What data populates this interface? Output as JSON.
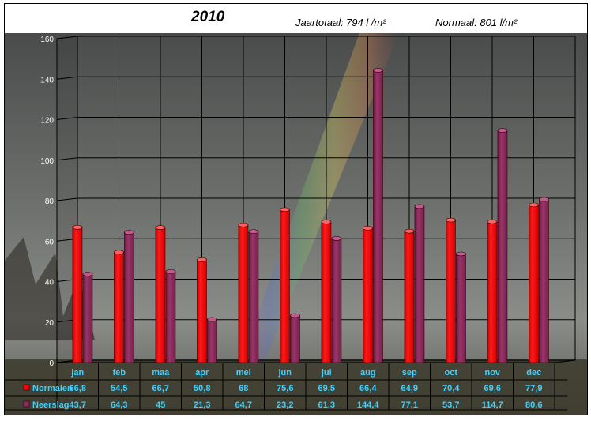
{
  "header": {
    "title": "2010",
    "year_total_label": "Jaartotaal:",
    "year_total_value": "794   l /m²",
    "normal_label": "Normaal: 801 l/m²"
  },
  "colors": {
    "normalen": "#ff0000",
    "neerslag": "#8c2a5a",
    "table_text": "#3fd1ff",
    "axis_text": "#ffffff"
  },
  "chart_data": {
    "type": "bar",
    "categories": [
      "jan",
      "feb",
      "maa",
      "apr",
      "mei",
      "jun",
      "jul",
      "aug",
      "sep",
      "oct",
      "nov",
      "dec"
    ],
    "series": [
      {
        "name": "Normalen",
        "values": [
          66.8,
          54.5,
          66.7,
          50.8,
          68,
          75.6,
          69.5,
          66.4,
          64.9,
          70.4,
          69.6,
          77.9
        ]
      },
      {
        "name": "Neerslag",
        "values": [
          43.7,
          64.3,
          45,
          21.3,
          64.7,
          23.2,
          61.3,
          144.4,
          77.1,
          53.7,
          114.7,
          80.6
        ]
      }
    ],
    "series_labels": [
      [
        "66,8",
        "54,5",
        "66,7",
        "50,8",
        "68",
        "75,6",
        "69,5",
        "66,4",
        "64,9",
        "70,4",
        "69,6",
        "77,9"
      ],
      [
        "43,7",
        "64,3",
        "45",
        "21,3",
        "64,7",
        "23,2",
        "61,3",
        "144,4",
        "77,1",
        "53,7",
        "114,7",
        "80,6"
      ]
    ],
    "ylim": [
      0,
      160
    ],
    "yticks": [
      "0",
      "20",
      "40",
      "60",
      "80",
      "100",
      "120",
      "140",
      "160"
    ],
    "grid": true,
    "legend": "data table below chart"
  }
}
